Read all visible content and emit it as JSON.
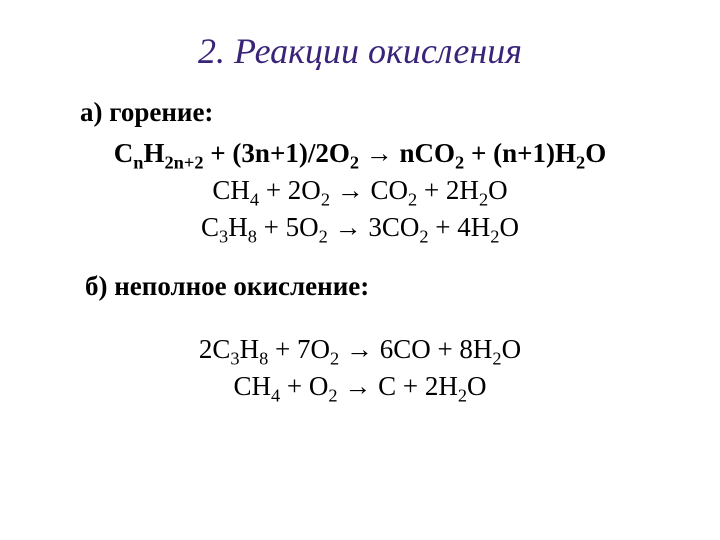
{
  "title": "2. Реакции окисления",
  "sectionA": {
    "heading": "а) горение:",
    "general": {
      "parts": [
        "С",
        "n",
        "H",
        "2n+2",
        " + (3n+1)/2O",
        "2",
        " → nCO",
        "2",
        " + (n+1)H",
        "2",
        "O"
      ]
    },
    "eq1": {
      "parts": [
        "СH",
        "4",
        " + 2O",
        "2",
        "  → CO",
        "2",
        " + 2H",
        "2",
        "O"
      ]
    },
    "eq2": {
      "parts": [
        "С",
        "3",
        "H",
        "8",
        " + 5O",
        "2",
        " → 3CO",
        "2",
        " + 4H",
        "2",
        "O"
      ]
    }
  },
  "sectionB": {
    "heading": "б) неполное окисление:",
    "eq1": {
      "parts": [
        "2С",
        "3",
        "H",
        "8",
        " + 7O",
        "2",
        " → 6CO + 8H",
        "2",
        "O"
      ]
    },
    "eq2": {
      "parts": [
        "СH",
        "4",
        " + O",
        "2",
        " → C + 2H",
        "2",
        "O"
      ]
    }
  }
}
